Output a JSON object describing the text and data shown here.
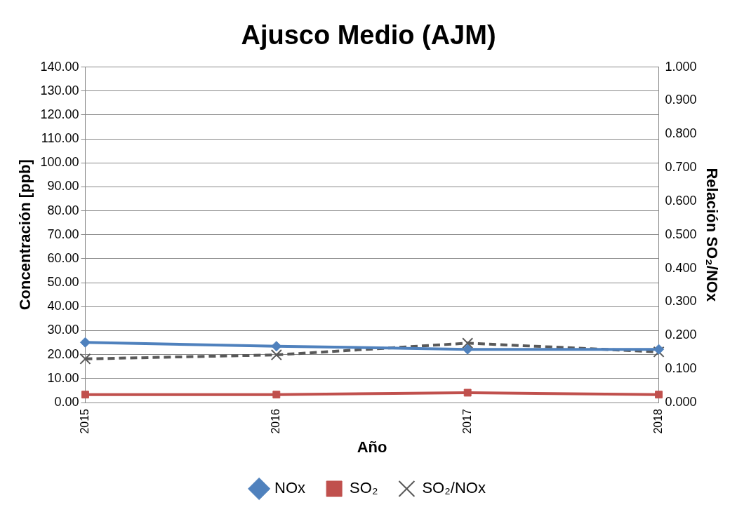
{
  "chart_data": {
    "type": "line",
    "title": "Ajusco Medio (AJM)",
    "xlabel": "Año",
    "ylabel": "Concentración [ppb]",
    "y2label": "Relación SO₂/NOx",
    "categories": [
      "2015",
      "2016",
      "2017",
      "2018"
    ],
    "series": [
      {
        "name": "NOx",
        "color": "#4f81bd",
        "values": [
          25.1,
          23.5,
          22.2,
          22.2
        ],
        "marker": "diamond",
        "line_style": "solid"
      },
      {
        "name": "SO₂",
        "color": "#c0504d",
        "values": [
          3.3,
          3.3,
          4.1,
          3.3
        ],
        "marker": "square",
        "line_style": "solid"
      },
      {
        "name": "SO₂/NOx",
        "color": "#595959",
        "values": [
          0.13,
          0.142,
          0.177,
          0.151
        ],
        "marker": "cross",
        "line_style": "dashed",
        "axis": "y2"
      }
    ],
    "ylim": [
      0,
      140
    ],
    "yticks": [
      {
        "value": 0,
        "label": "0.00"
      },
      {
        "value": 10,
        "label": "10.00"
      },
      {
        "value": 20,
        "label": "20.00"
      },
      {
        "value": 30,
        "label": "30.00"
      },
      {
        "value": 40,
        "label": "40.00"
      },
      {
        "value": 50,
        "label": "50.00"
      },
      {
        "value": 60,
        "label": "60.00"
      },
      {
        "value": 70,
        "label": "70.00"
      },
      {
        "value": 80,
        "label": "80.00"
      },
      {
        "value": 90,
        "label": "90.00"
      },
      {
        "value": 100,
        "label": "100.00"
      },
      {
        "value": 110,
        "label": "110.00"
      },
      {
        "value": 120,
        "label": "120.00"
      },
      {
        "value": 130,
        "label": "130.00"
      },
      {
        "value": 140,
        "label": "140.00"
      }
    ],
    "y2lim": [
      0,
      1
    ],
    "y2ticks": [
      {
        "value": 0,
        "label": "0.000"
      },
      {
        "value": 0.1,
        "label": "0.100"
      },
      {
        "value": 0.2,
        "label": "0.200"
      },
      {
        "value": 0.3,
        "label": "0.300"
      },
      {
        "value": 0.4,
        "label": "0.400"
      },
      {
        "value": 0.5,
        "label": "0.500"
      },
      {
        "value": 0.6,
        "label": "0.600"
      },
      {
        "value": 0.7,
        "label": "0.700"
      },
      {
        "value": 0.8,
        "label": "0.800"
      },
      {
        "value": 0.9,
        "label": "0.900"
      },
      {
        "value": 1,
        "label": "1.000"
      }
    ],
    "grid": "y",
    "legend": "bottom"
  }
}
